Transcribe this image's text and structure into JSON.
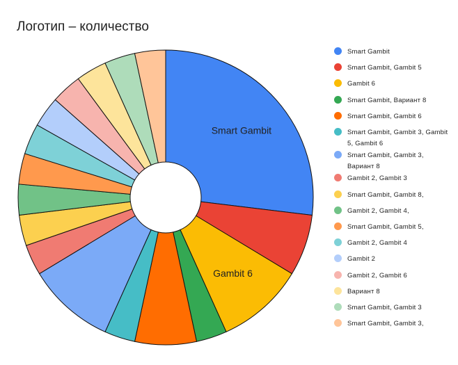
{
  "chart_data": {
    "type": "pie",
    "title": "Логотип – количество",
    "donut": true,
    "legend_position": "right",
    "slices": [
      {
        "label": "Smart Gambit",
        "value": 28,
        "color": "#4285f4",
        "show_label": true
      },
      {
        "label": "Smart Gambit, Gambit 5",
        "value": 7,
        "color": "#ea4335",
        "show_label": false
      },
      {
        "label": "Gambit 6",
        "value": 10,
        "color": "#fbbc04",
        "show_label": true
      },
      {
        "label": "Smart Gambit, Вариант 8",
        "value": 3.5,
        "color": "#34a853",
        "show_label": false
      },
      {
        "label": "Smart Gambit, Gambit 6",
        "value": 7,
        "color": "#ff6d01",
        "show_label": false
      },
      {
        "label": "Smart Gambit, Gambit 3, Gambit 5, Gambit 6",
        "value": 3.5,
        "color": "#46bdc6",
        "show_label": false
      },
      {
        "label": "Smart Gambit, Gambit 3, Вариант 8",
        "value": 10,
        "color": "#7baaf7",
        "show_label": false
      },
      {
        "label": "Gambit 2, Gambit 3",
        "value": 3.5,
        "color": "#f07b72",
        "show_label": false
      },
      {
        "label": "Smart Gambit, Gambit 8,",
        "value": 3.5,
        "color": "#fcd04f",
        "show_label": false
      },
      {
        "label": "Gambit 2, Gambit 4,",
        "value": 3.5,
        "color": "#71c287",
        "show_label": false
      },
      {
        "label": "Smart Gambit, Gambit 5,",
        "value": 3.5,
        "color": "#ff994d",
        "show_label": false
      },
      {
        "label": "Gambit 2, Gambit 4",
        "value": 3.5,
        "color": "#7ed1d7",
        "show_label": false
      },
      {
        "label": "Gambit 2",
        "value": 3.5,
        "color": "#b3cefb",
        "show_label": false
      },
      {
        "label": "Gambit 2, Gambit 6",
        "value": 3.5,
        "color": "#f7b4ae",
        "show_label": false
      },
      {
        "label": "Вариант 8",
        "value": 3.5,
        "color": "#fde49b",
        "show_label": false
      },
      {
        "label": "Smart Gambit, Gambit 3",
        "value": 3.5,
        "color": "#aedcba",
        "show_label": false
      },
      {
        "label": "Smart Gambit, Gambit 3,",
        "value": 3.5,
        "color": "#ffc599",
        "show_label": false
      }
    ]
  },
  "legend": {
    "items": [
      {
        "label": "Smart Gambit",
        "color": "#4285f4"
      },
      {
        "label": "Smart Gambit, Gambit 5",
        "color": "#ea4335"
      },
      {
        "label": "Gambit 6",
        "color": "#fbbc04"
      },
      {
        "label": "Smart Gambit, Вариант 8",
        "color": "#34a853"
      },
      {
        "label": "Smart Gambit, Gambit 6",
        "color": "#ff6d01"
      },
      {
        "label": "Smart Gambit, Gambit 3, Gambit 5, Gambit 6",
        "color": "#46bdc6"
      },
      {
        "label": "Smart Gambit, Gambit 3, Вариант 8",
        "color": "#7baaf7"
      },
      {
        "label": "Gambit 2, Gambit 3",
        "color": "#f07b72"
      },
      {
        "label": "Smart Gambit, Gambit 8,",
        "color": "#fcd04f"
      },
      {
        "label": "Gambit 2, Gambit 4,",
        "color": "#71c287"
      },
      {
        "label": "Smart Gambit, Gambit 5,",
        "color": "#ff994d"
      },
      {
        "label": "Gambit 2, Gambit 4",
        "color": "#7ed1d7"
      },
      {
        "label": "Gambit 2",
        "color": "#b3cefb"
      },
      {
        "label": "Gambit 2, Gambit 6",
        "color": "#f7b4ae"
      },
      {
        "label": "Вариант 8",
        "color": "#fde49b"
      },
      {
        "label": "Smart Gambit, Gambit 3",
        "color": "#aedcba"
      },
      {
        "label": "Smart Gambit, Gambit 3,",
        "color": "#ffc599"
      }
    ]
  }
}
